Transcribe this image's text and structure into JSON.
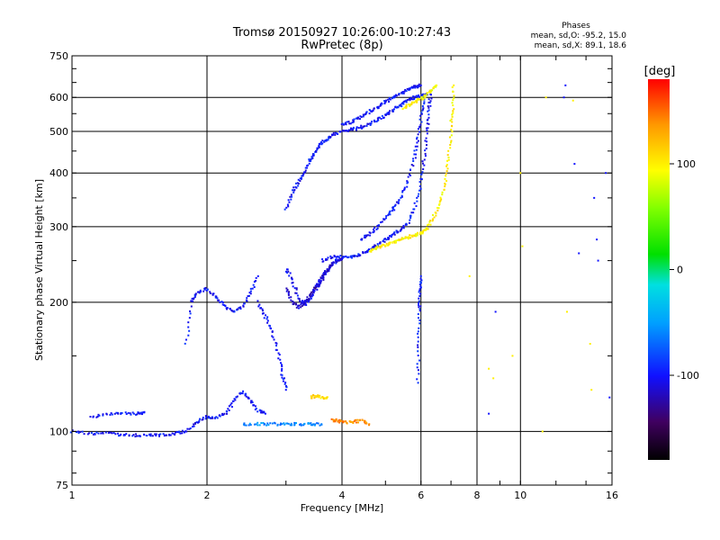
{
  "chart_data": {
    "type": "scatter",
    "title": "Tromsø 20150927 10:26:00-10:27:43",
    "subtitle": "RwPretec (8p)",
    "xlabel": "Frequency [MHz]",
    "ylabel": "Stationary phase Virtual Height [km]",
    "x_scale": "log",
    "y_scale": "log",
    "xlim": [
      1,
      16
    ],
    "ylim": [
      75,
      750
    ],
    "x_ticks": [
      1,
      2,
      4,
      6,
      8,
      10,
      16
    ],
    "y_ticks": [
      75,
      100,
      200,
      300,
      400,
      500,
      600,
      750
    ],
    "grid": true,
    "phase_stats": {
      "title": "Phases",
      "line_o": "mean, sd,O: -95.2, 15.0",
      "line_x": "mean, sd,X: 89.1, 18.6"
    },
    "colorbar": {
      "label": "[deg]",
      "ticks": [
        100,
        0,
        -100
      ],
      "range": [
        -180,
        180
      ]
    },
    "traces": [
      {
        "mode": "o",
        "phase": -100,
        "points": [
          [
            1.0,
            100
          ],
          [
            1.1,
            99
          ],
          [
            1.2,
            99
          ],
          [
            1.3,
            98
          ],
          [
            1.4,
            98
          ],
          [
            1.5,
            98
          ],
          [
            1.6,
            98
          ],
          [
            1.7,
            99
          ],
          [
            1.8,
            100
          ],
          [
            1.9,
            105
          ],
          [
            2.0,
            108
          ],
          [
            2.1,
            108
          ],
          [
            2.2,
            110
          ],
          [
            2.3,
            118
          ],
          [
            2.4,
            124
          ],
          [
            2.5,
            118
          ],
          [
            2.6,
            112
          ],
          [
            2.7,
            110
          ]
        ]
      },
      {
        "mode": "o",
        "phase": -100,
        "points": [
          [
            1.1,
            108
          ],
          [
            1.2,
            110
          ],
          [
            1.3,
            110
          ],
          [
            1.4,
            110
          ],
          [
            1.45,
            111
          ]
        ]
      },
      {
        "mode": "o",
        "phase": -100,
        "points": [
          [
            1.8,
            160
          ],
          [
            1.85,
            200
          ],
          [
            1.9,
            210
          ],
          [
            2.0,
            215
          ],
          [
            2.1,
            205
          ],
          [
            2.2,
            195
          ],
          [
            2.3,
            190
          ],
          [
            2.4,
            195
          ],
          [
            2.5,
            210
          ],
          [
            2.6,
            230
          ]
        ]
      },
      {
        "mode": "o",
        "phase": -100,
        "points": [
          [
            2.6,
            200
          ],
          [
            2.7,
            185
          ],
          [
            2.8,
            170
          ],
          [
            2.9,
            150
          ],
          [
            2.95,
            135
          ],
          [
            3.0,
            125
          ]
        ]
      },
      {
        "mode": "o",
        "phase": -105,
        "points": [
          [
            3.0,
            240
          ],
          [
            3.1,
            225
          ],
          [
            3.2,
            205
          ],
          [
            3.3,
            197
          ],
          [
            3.4,
            205
          ],
          [
            3.5,
            215
          ],
          [
            3.6,
            225
          ],
          [
            3.7,
            235
          ],
          [
            3.8,
            245
          ],
          [
            3.9,
            250
          ],
          [
            4.0,
            252
          ]
        ]
      },
      {
        "mode": "o",
        "phase": -115,
        "points": [
          [
            3.0,
            215
          ],
          [
            3.1,
            200
          ],
          [
            3.2,
            195
          ],
          [
            3.3,
            200
          ],
          [
            3.4,
            208
          ],
          [
            3.5,
            218
          ],
          [
            3.6,
            228
          ],
          [
            3.7,
            238
          ],
          [
            3.8,
            244
          ]
        ]
      },
      {
        "mode": "o",
        "phase": -100,
        "points": [
          [
            3.0,
            330
          ],
          [
            3.1,
            360
          ],
          [
            3.2,
            380
          ],
          [
            3.3,
            400
          ],
          [
            3.4,
            430
          ],
          [
            3.5,
            450
          ],
          [
            3.6,
            470
          ],
          [
            3.7,
            480
          ],
          [
            3.8,
            490
          ],
          [
            4.0,
            500
          ],
          [
            4.2,
            505
          ],
          [
            4.4,
            510
          ],
          [
            4.6,
            520
          ],
          [
            4.8,
            530
          ],
          [
            5.0,
            545
          ],
          [
            5.2,
            560
          ],
          [
            5.4,
            575
          ],
          [
            5.6,
            590
          ],
          [
            5.8,
            600
          ],
          [
            6.0,
            605
          ],
          [
            6.2,
            610
          ]
        ]
      },
      {
        "mode": "o",
        "phase": -100,
        "points": [
          [
            4.0,
            520
          ],
          [
            4.2,
            525
          ],
          [
            4.4,
            540
          ],
          [
            4.6,
            555
          ],
          [
            4.8,
            570
          ],
          [
            5.0,
            585
          ],
          [
            5.2,
            600
          ],
          [
            5.4,
            612
          ],
          [
            5.6,
            625
          ],
          [
            5.8,
            635
          ],
          [
            6.0,
            640
          ]
        ]
      },
      {
        "mode": "o",
        "phase": -100,
        "points": [
          [
            3.6,
            250
          ],
          [
            3.8,
            255
          ],
          [
            4.0,
            255
          ],
          [
            4.2,
            255
          ],
          [
            4.4,
            258
          ],
          [
            4.6,
            265
          ],
          [
            4.8,
            272
          ],
          [
            5.0,
            280
          ],
          [
            5.2,
            288
          ],
          [
            5.4,
            295
          ],
          [
            5.6,
            305
          ],
          [
            5.8,
            330
          ],
          [
            6.0,
            380
          ],
          [
            6.1,
            430
          ],
          [
            6.2,
            500
          ],
          [
            6.25,
            560
          ],
          [
            6.3,
            610
          ]
        ]
      },
      {
        "mode": "o",
        "phase": -100,
        "points": [
          [
            4.4,
            280
          ],
          [
            4.6,
            288
          ],
          [
            4.8,
            300
          ],
          [
            5.0,
            315
          ],
          [
            5.2,
            330
          ],
          [
            5.4,
            350
          ],
          [
            5.6,
            380
          ],
          [
            5.8,
            430
          ],
          [
            5.9,
            480
          ],
          [
            6.0,
            540
          ],
          [
            6.1,
            600
          ]
        ]
      },
      {
        "mode": "x",
        "phase": 100,
        "points": [
          [
            4.6,
            262
          ],
          [
            4.8,
            268
          ],
          [
            5.0,
            272
          ],
          [
            5.2,
            276
          ],
          [
            5.4,
            280
          ],
          [
            5.6,
            283
          ],
          [
            5.8,
            286
          ],
          [
            6.0,
            290
          ],
          [
            6.2,
            298
          ],
          [
            6.4,
            315
          ],
          [
            6.6,
            340
          ],
          [
            6.8,
            380
          ],
          [
            6.9,
            430
          ],
          [
            7.0,
            500
          ],
          [
            7.05,
            560
          ],
          [
            7.1,
            640
          ]
        ]
      },
      {
        "mode": "x",
        "phase": 95,
        "points": [
          [
            5.5,
            565
          ],
          [
            5.7,
            580
          ],
          [
            5.9,
            590
          ],
          [
            6.1,
            600
          ],
          [
            6.3,
            620
          ],
          [
            6.5,
            640
          ]
        ]
      },
      {
        "mode": "o",
        "phase": -95,
        "points": [
          [
            5.9,
            130
          ],
          [
            5.92,
            160
          ],
          [
            5.95,
            190
          ],
          [
            5.97,
            210
          ],
          [
            6.0,
            230
          ]
        ]
      },
      {
        "mode": "x",
        "phase": 140,
        "points": [
          [
            3.8,
            106
          ],
          [
            3.9,
            106
          ],
          [
            4.0,
            105
          ],
          [
            4.2,
            105
          ],
          [
            4.4,
            106
          ],
          [
            4.6,
            104
          ]
        ]
      },
      {
        "mode": "x",
        "phase": 110,
        "points": [
          [
            3.4,
            120
          ],
          [
            3.5,
            121
          ],
          [
            3.6,
            120
          ],
          [
            3.7,
            120
          ]
        ]
      },
      {
        "mode": "o",
        "phase": -60,
        "points": [
          [
            2.4,
            104
          ],
          [
            2.6,
            104
          ],
          [
            2.8,
            104
          ],
          [
            3.0,
            104
          ],
          [
            3.2,
            104
          ],
          [
            3.4,
            104
          ],
          [
            3.6,
            104
          ]
        ]
      },
      {
        "mode": "noise",
        "phase": -100,
        "points": [
          [
            12.5,
            600
          ],
          [
            12.6,
            640
          ],
          [
            13.2,
            420
          ],
          [
            13.5,
            260
          ],
          [
            14.6,
            350
          ],
          [
            14.8,
            280
          ],
          [
            14.9,
            250
          ],
          [
            15.5,
            400
          ],
          [
            15.8,
            120
          ],
          [
            8.8,
            190
          ],
          [
            8.5,
            110
          ]
        ]
      },
      {
        "mode": "noise",
        "phase": 100,
        "points": [
          [
            10,
            400
          ],
          [
            11.4,
            600
          ],
          [
            12.7,
            190
          ],
          [
            14.3,
            160
          ],
          [
            14.4,
            125
          ],
          [
            9.6,
            150
          ],
          [
            8.7,
            133
          ],
          [
            10.1,
            270
          ],
          [
            13.1,
            590
          ],
          [
            7.7,
            230
          ],
          [
            8.5,
            140
          ],
          [
            11.2,
            100
          ]
        ]
      }
    ]
  }
}
